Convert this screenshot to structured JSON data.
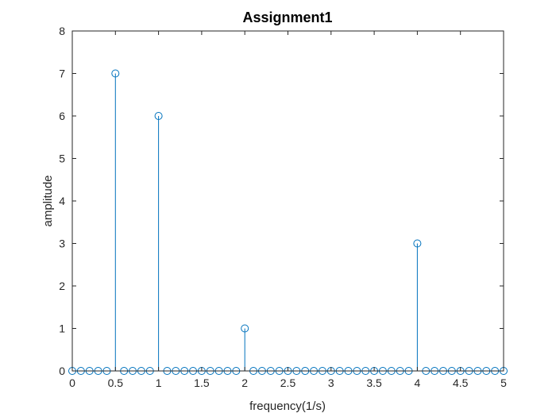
{
  "chart_data": {
    "type": "scatter",
    "style": "stem",
    "title": "Assignment1",
    "xlabel": "frequency(1/s)",
    "ylabel": "amplitude",
    "xlim": [
      0,
      5
    ],
    "ylim": [
      0,
      8
    ],
    "xticks": [
      0,
      0.5,
      1,
      1.5,
      2,
      2.5,
      3,
      3.5,
      4,
      4.5,
      5
    ],
    "xtick_labels": [
      "0",
      "0.5",
      "1",
      "1.5",
      "2",
      "2.5",
      "3",
      "3.5",
      "4",
      "4.5",
      "5"
    ],
    "yticks": [
      0,
      1,
      2,
      3,
      4,
      5,
      6,
      7,
      8
    ],
    "ytick_labels": [
      "0",
      "1",
      "2",
      "3",
      "4",
      "5",
      "6",
      "7",
      "8"
    ],
    "grid": false,
    "color": "#0072bd",
    "x": [
      0,
      0.1,
      0.2,
      0.3,
      0.4,
      0.5,
      0.6,
      0.7,
      0.8,
      0.9,
      1,
      1.1,
      1.2,
      1.3,
      1.4,
      1.5,
      1.6,
      1.7,
      1.8,
      1.9,
      2,
      2.1,
      2.2,
      2.3,
      2.4,
      2.5,
      2.6,
      2.7,
      2.8,
      2.9,
      3,
      3.1,
      3.2,
      3.3,
      3.4,
      3.5,
      3.6,
      3.7,
      3.8,
      3.9,
      4,
      4.1,
      4.2,
      4.3,
      4.4,
      4.5,
      4.6,
      4.7,
      4.8,
      4.9,
      5
    ],
    "y": [
      0,
      0,
      0,
      0,
      0,
      7,
      0,
      0,
      0,
      0,
      6,
      0,
      0,
      0,
      0,
      0,
      0,
      0,
      0,
      0,
      1,
      0,
      0,
      0,
      0,
      0,
      0,
      0,
      0,
      0,
      0,
      0,
      0,
      0,
      0,
      0,
      0,
      0,
      0,
      0,
      3,
      0,
      0,
      0,
      0,
      0,
      0,
      0,
      0,
      0,
      0
    ]
  }
}
